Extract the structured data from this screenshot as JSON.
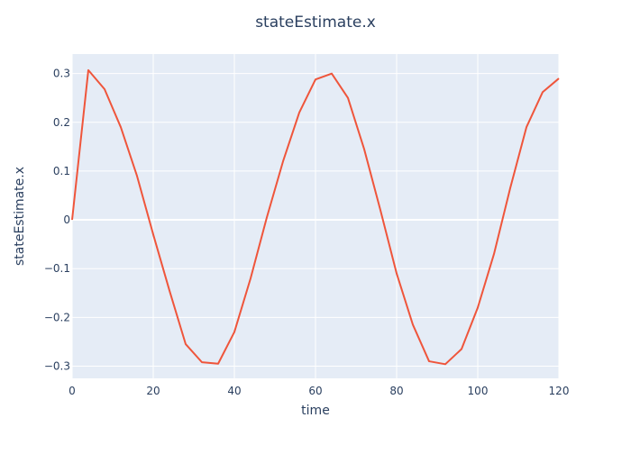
{
  "chart_data": {
    "type": "line",
    "title": "stateEstimate.x",
    "xlabel": "time",
    "ylabel": "stateEstimate.x",
    "xlim": [
      0,
      120
    ],
    "ylim": [
      -0.325,
      0.34
    ],
    "xticks": [
      0,
      20,
      40,
      60,
      80,
      100,
      120
    ],
    "xtick_labels": [
      "0",
      "20",
      "40",
      "60",
      "80",
      "100",
      "120"
    ],
    "yticks": [
      -0.3,
      -0.2,
      -0.1,
      0,
      0.1,
      0.2,
      0.3
    ],
    "ytick_labels": [
      "−0.3",
      "−0.2",
      "−0.1",
      "0",
      "0.1",
      "0.2",
      "0.3"
    ],
    "grid": true,
    "legend": "none",
    "colors": {
      "line": "#EF553B",
      "plot_bg": "#E5ECF6",
      "grid": "#ffffff",
      "text": "#2a3f5f"
    },
    "series": [
      {
        "x": [
          0,
          4,
          8,
          12,
          16,
          20,
          24,
          28,
          32,
          36,
          40,
          44,
          48,
          52,
          56,
          60,
          64,
          68,
          72,
          76,
          80,
          84,
          88,
          92,
          96,
          100,
          104,
          108,
          112,
          116,
          120
        ],
        "y": [
          0.0,
          0.307,
          0.268,
          0.19,
          0.09,
          -0.03,
          -0.145,
          -0.255,
          -0.292,
          -0.295,
          -0.23,
          -0.12,
          0.005,
          0.12,
          0.22,
          0.288,
          0.3,
          0.25,
          0.145,
          0.02,
          -0.11,
          -0.215,
          -0.29,
          -0.296,
          -0.265,
          -0.18,
          -0.07,
          0.065,
          0.19,
          0.262,
          0.29
        ]
      }
    ]
  }
}
